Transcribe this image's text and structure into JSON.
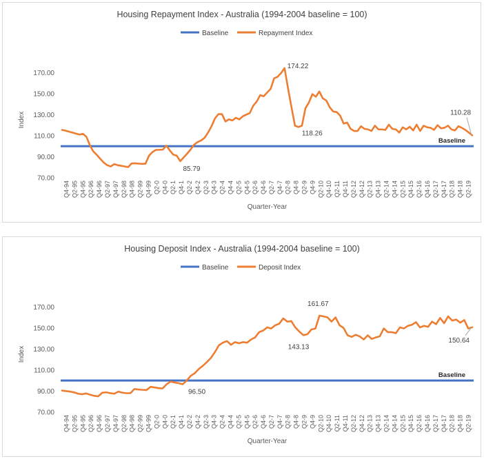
{
  "charts_meta": {
    "accent_baseline": "#4472C4",
    "accent_series": "#ED7D31"
  },
  "chart_data": [
    {
      "type": "line",
      "title": "Housing Repayment Index - Australia (1994-2004 baseline = 100)",
      "xlabel": "Quarter-Year",
      "ylabel": "Index",
      "ylim": [
        70,
        180
      ],
      "yticks": [
        "70.00",
        "90.00",
        "110.00",
        "130.00",
        "150.00",
        "170.00"
      ],
      "grid": false,
      "legend_position": "top",
      "x_tick_labels": [
        "Q4-94",
        "Q2-95",
        "Q4-95",
        "Q2-96",
        "Q4-96",
        "Q2-97",
        "Q4-97",
        "Q2-98",
        "Q4-98",
        "Q2-99",
        "Q4-99",
        "Q2-0",
        "Q4-0",
        "Q2-1",
        "Q4-1",
        "Q2-2",
        "Q4-2",
        "Q2-3",
        "Q4-3",
        "Q2-4",
        "Q4-4",
        "Q2-5",
        "Q4-5",
        "Q2-6",
        "Q4-6",
        "Q2-7",
        "Q4-7",
        "Q2-8",
        "Q4-8",
        "Q2-9",
        "Q4-9",
        "Q2-10",
        "Q4-10",
        "Q2-11",
        "Q4-11",
        "Q2-12",
        "Q4-12",
        "Q2-13",
        "Q4-13",
        "Q2-14",
        "Q4-14",
        "Q2-15",
        "Q4-15",
        "Q2-16",
        "Q4-16",
        "Q2-17",
        "Q4-17",
        "Q2-18",
        "Q4-18",
        "Q2-19"
      ],
      "series": [
        {
          "name": "Baseline",
          "color": "#4472C4",
          "values": [
            100,
            100
          ]
        },
        {
          "name": "Repayment Index",
          "color": "#ED7D31",
          "values": [
            115.5,
            114.8,
            113.9,
            113.0,
            112.0,
            111.1,
            111.8,
            109.0,
            101.0,
            95.0,
            91.8,
            88.0,
            84.5,
            82.0,
            80.8,
            83.0,
            82.0,
            81.4,
            80.8,
            80.2,
            83.6,
            83.8,
            83.5,
            83.2,
            83.4,
            91.0,
            94.5,
            96.5,
            96.6,
            96.8,
            100.5,
            96.0,
            92.0,
            91.0,
            85.79,
            89.5,
            93.0,
            97.0,
            101.5,
            104.0,
            105.5,
            108.0,
            113.0,
            119.0,
            126.5,
            130.5,
            130.5,
            123.5,
            125.5,
            124.5,
            127.0,
            125.5,
            128.5,
            130.0,
            131.5,
            138.5,
            142.5,
            148.5,
            147.5,
            151.0,
            154.5,
            164.5,
            166.0,
            169.5,
            174.22,
            155.0,
            137.0,
            119.5,
            118.26,
            119.5,
            136.0,
            141.5,
            149.5,
            147.0,
            152.0,
            145.5,
            143.5,
            137.0,
            133.0,
            132.5,
            129.0,
            121.5,
            122.5,
            116.5,
            114.5,
            114.5,
            119.0,
            116.5,
            116.0,
            114.5,
            119.5,
            116.0,
            116.0,
            115.5,
            120.5,
            116.5,
            116.0,
            113.0,
            118.0,
            116.0,
            118.5,
            115.0,
            120.5,
            114.5,
            119.5,
            118.0,
            117.5,
            115.5,
            120.0,
            117.0,
            117.5,
            119.5,
            116.0,
            115.0,
            119.0,
            117.5,
            115.5,
            113.0,
            110.28
          ]
        }
      ],
      "annotations": [
        "174.22",
        "118.26",
        "85.79",
        "110.28",
        "Baseline"
      ]
    },
    {
      "type": "line",
      "title": "Housing Deposit Index - Australia (1994-2004 baseline = 100)",
      "xlabel": "Quarter-Year",
      "ylabel": "Index",
      "ylim": [
        70,
        180
      ],
      "yticks": [
        "70.00",
        "90.00",
        "110.00",
        "130.00",
        "150.00",
        "170.00"
      ],
      "grid": false,
      "legend_position": "top",
      "x_tick_labels": [
        "Q4-94",
        "Q2-95",
        "Q4-95",
        "Q2-96",
        "Q4-96",
        "Q2-97",
        "Q4-97",
        "Q2-98",
        "Q4-98",
        "Q2-99",
        "Q4-99",
        "Q2-0",
        "Q4-0",
        "Q2-1",
        "Q4-1",
        "Q2-2",
        "Q4-2",
        "Q2-3",
        "Q4-3",
        "Q2-4",
        "Q4-4",
        "Q2-5",
        "Q4-5",
        "Q2-6",
        "Q4-6",
        "Q2-7",
        "Q4-7",
        "Q2-8",
        "Q4-8",
        "Q2-9",
        "Q4-9",
        "Q2-10",
        "Q4-10",
        "Q2-11",
        "Q4-11",
        "Q2-12",
        "Q4-12",
        "Q2-13",
        "Q4-13",
        "Q2-14",
        "Q4-14",
        "Q2-15",
        "Q4-15",
        "Q2-16",
        "Q4-16",
        "Q2-17",
        "Q4-17",
        "Q2-18",
        "Q4-18",
        "Q2-19"
      ],
      "series": [
        {
          "name": "Baseline",
          "color": "#4472C4",
          "values": [
            100,
            100
          ]
        },
        {
          "name": "Deposit Index",
          "color": "#ED7D31",
          "values": [
            90.5,
            90.0,
            89.5,
            88.8,
            87.5,
            87.0,
            87.8,
            86.5,
            85.5,
            85.0,
            88.5,
            88.8,
            88.0,
            87.5,
            89.5,
            88.5,
            88.0,
            88.0,
            92.0,
            91.5,
            91.2,
            91.0,
            94.0,
            93.5,
            92.8,
            92.5,
            96.5,
            99.0,
            98.2,
            97.5,
            96.5,
            100.0,
            104.5,
            107.0,
            111.0,
            114.0,
            117.5,
            121.5,
            127.0,
            133.5,
            136.0,
            137.5,
            134.0,
            136.5,
            135.5,
            136.5,
            136.0,
            139.0,
            141.0,
            146.0,
            147.5,
            150.5,
            149.5,
            152.5,
            154.0,
            159.0,
            156.0,
            156.5,
            150.5,
            146.5,
            143.13,
            144.0,
            148.5,
            149.5,
            161.67,
            161.0,
            160.0,
            156.0,
            160.0,
            152.5,
            150.0,
            143.0,
            141.5,
            143.5,
            142.0,
            139.0,
            143.0,
            139.5,
            141.0,
            142.0,
            149.5,
            146.0,
            146.0,
            145.0,
            150.5,
            149.5,
            152.0,
            153.0,
            155.5,
            150.5,
            152.0,
            151.0,
            156.0,
            153.5,
            159.5,
            154.5,
            161.0,
            157.0,
            158.0,
            155.0,
            157.5,
            149.5,
            150.64
          ]
        }
      ],
      "annotations": [
        "161.67",
        "143.13",
        "96.50",
        "150.64",
        "Baseline"
      ]
    }
  ]
}
